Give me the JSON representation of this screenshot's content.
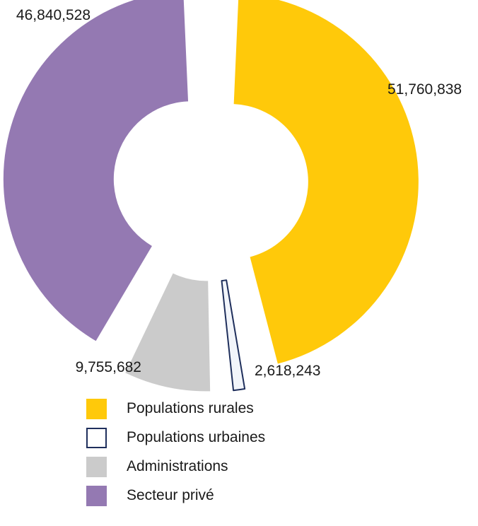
{
  "chart_data": {
    "type": "pie",
    "variant": "exploded-donut",
    "title": "",
    "series": [
      {
        "name": "Populations rurales",
        "value": 51760838,
        "label": "51,760,838",
        "color": "#FFC90A",
        "outline": false
      },
      {
        "name": "Populations urbaines",
        "value": 2618243,
        "label": "2,618,243",
        "color": "#F2F5FA",
        "outline": true,
        "stroke": "#1F2F5C"
      },
      {
        "name": "Administrations",
        "value": 9755682,
        "label": "9,755,682",
        "color": "#CBCBCB",
        "outline": false
      },
      {
        "name": "Secteur privé",
        "value": 46840528,
        "label": "46,840,528",
        "color": "#9479B2",
        "outline": false
      }
    ],
    "legend_position": "bottom"
  }
}
